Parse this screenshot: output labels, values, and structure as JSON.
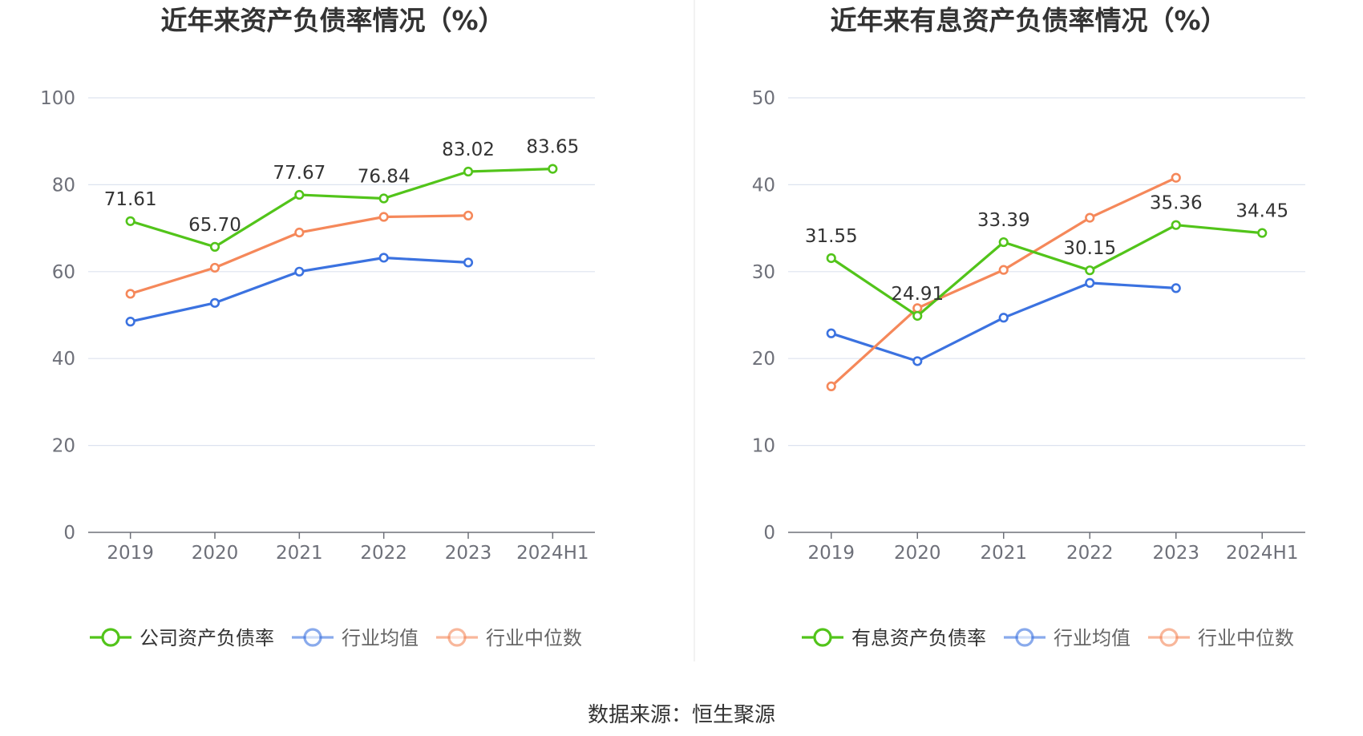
{
  "source_label": "数据来源：恒生聚源",
  "colors": {
    "company": "#52c41a",
    "avg": "#3b72e0",
    "median": "#f5885a",
    "grid": "#dde3ef",
    "axis": "#6e7079"
  },
  "chart_data": [
    {
      "type": "line",
      "title": "近年来资产负债率情况（%）",
      "categories": [
        "2019",
        "2020",
        "2021",
        "2022",
        "2023",
        "2024H1"
      ],
      "ylim": [
        0,
        100
      ],
      "yticks": [
        0,
        20,
        40,
        60,
        80,
        100
      ],
      "grid": true,
      "legend_position": "bottom",
      "series": [
        {
          "name": "公司资产负债率",
          "color": "#52c41a",
          "values": [
            71.61,
            65.7,
            77.67,
            76.84,
            83.02,
            83.65
          ],
          "labels": [
            "71.61",
            "65.70",
            "77.67",
            "76.84",
            "83.02",
            "83.65"
          ]
        },
        {
          "name": "行业均值",
          "color": "#3b72e0",
          "values": [
            48.5,
            52.8,
            60.0,
            63.2,
            62.1,
            null
          ]
        },
        {
          "name": "行业中位数",
          "color": "#f5885a",
          "values": [
            54.9,
            60.9,
            69.0,
            72.6,
            72.9,
            null
          ]
        }
      ]
    },
    {
      "type": "line",
      "title": "近年来有息资产负债率情况（%）",
      "categories": [
        "2019",
        "2020",
        "2021",
        "2022",
        "2023",
        "2024H1"
      ],
      "ylim": [
        0,
        50
      ],
      "yticks": [
        0,
        10,
        20,
        30,
        40,
        50
      ],
      "grid": true,
      "legend_position": "bottom",
      "series": [
        {
          "name": "有息资产负债率",
          "color": "#52c41a",
          "values": [
            31.55,
            24.91,
            33.39,
            30.15,
            35.36,
            34.45
          ],
          "labels": [
            "31.55",
            "24.91",
            "33.39",
            "30.15",
            "35.36",
            "34.45"
          ]
        },
        {
          "name": "行业均值",
          "color": "#3b72e0",
          "values": [
            22.9,
            19.7,
            24.7,
            28.7,
            28.1,
            null
          ]
        },
        {
          "name": "行业中位数",
          "color": "#f5885a",
          "values": [
            16.8,
            25.8,
            30.2,
            36.2,
            40.8,
            null
          ]
        }
      ]
    }
  ]
}
